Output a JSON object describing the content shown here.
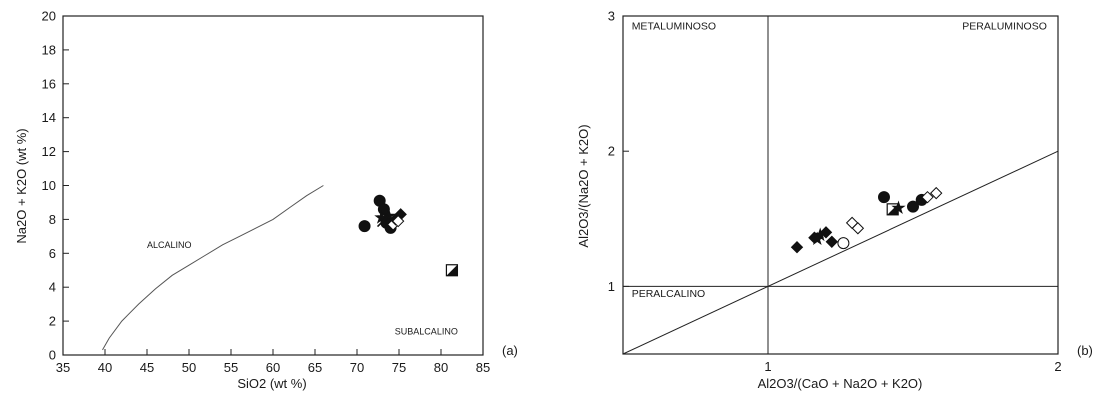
{
  "chart_data": [
    {
      "id": "a",
      "type": "scatter",
      "title": "",
      "panel_label": "(a)",
      "xlabel": "SiO2 (wt %)",
      "ylabel": "Na2O + K2O (wt %)",
      "xlim": [
        35,
        85
      ],
      "ylim": [
        0,
        20
      ],
      "xticks": [
        35,
        40,
        45,
        50,
        55,
        60,
        65,
        70,
        75,
        80,
        85
      ],
      "yticks": [
        0,
        2,
        4,
        6,
        8,
        10,
        12,
        14,
        16,
        18,
        20
      ],
      "grid": false,
      "field_labels": [
        {
          "text": "ALCALINO",
          "x": 45,
          "y": 6.3
        },
        {
          "text": "SUBALCALINO",
          "x": 74.5,
          "y": 1.2
        }
      ],
      "boundary_line": {
        "x": [
          39.7,
          40.5,
          42,
          44,
          46,
          48,
          50,
          52,
          54,
          56,
          58,
          60,
          62,
          64,
          66
        ],
        "y": [
          0.3,
          1.0,
          2.0,
          3.0,
          3.9,
          4.7,
          5.3,
          5.9,
          6.5,
          7.0,
          7.5,
          8.0,
          8.7,
          9.4,
          10.0
        ]
      },
      "points": [
        {
          "x": 70.9,
          "y": 7.6,
          "marker": "circle-filled"
        },
        {
          "x": 72.7,
          "y": 9.1,
          "marker": "circle-filled"
        },
        {
          "x": 73.2,
          "y": 8.6,
          "marker": "circle-filled"
        },
        {
          "x": 73.5,
          "y": 7.8,
          "marker": "circle-filled"
        },
        {
          "x": 74.0,
          "y": 7.5,
          "marker": "circle-filled"
        },
        {
          "x": 73.8,
          "y": 8.2,
          "marker": "star"
        },
        {
          "x": 72.9,
          "y": 8.1,
          "marker": "star"
        },
        {
          "x": 73.1,
          "y": 7.9,
          "marker": "cross"
        },
        {
          "x": 74.3,
          "y": 7.7,
          "marker": "diamond-open"
        },
        {
          "x": 74.6,
          "y": 8.0,
          "marker": "diamond-filled"
        },
        {
          "x": 75.2,
          "y": 8.3,
          "marker": "diamond-filled"
        },
        {
          "x": 74.9,
          "y": 7.9,
          "marker": "diamond-open"
        },
        {
          "x": 81.3,
          "y": 5.0,
          "marker": "square-half"
        }
      ]
    },
    {
      "id": "b",
      "type": "scatter",
      "title": "",
      "panel_label": "(b)",
      "xlabel": "Al2O3/(CaO + Na2O + K2O)",
      "ylabel": "Al2O3/(Na2O + K2O)",
      "xlim": [
        0.5,
        2
      ],
      "ylim": [
        0.5,
        3
      ],
      "xticks": [
        1,
        2
      ],
      "yticks": [
        1,
        2,
        3
      ],
      "grid": false,
      "divider_x": 1,
      "divider_y": 1,
      "field_labels": [
        {
          "text": "METALUMINOSO",
          "x": 0.53,
          "y": 2.9
        },
        {
          "text": "PERALUMINOSO",
          "x": 1.67,
          "y": 2.9
        },
        {
          "text": "PERALCALINO",
          "x": 0.53,
          "y": 0.92
        }
      ],
      "diagonal_line": {
        "x": [
          0.5,
          2.0
        ],
        "y": [
          0.5,
          2.0
        ]
      },
      "points": [
        {
          "x": 1.4,
          "y": 1.66,
          "marker": "circle-filled"
        },
        {
          "x": 1.5,
          "y": 1.59,
          "marker": "circle-filled"
        },
        {
          "x": 1.53,
          "y": 1.64,
          "marker": "circle-filled"
        },
        {
          "x": 1.43,
          "y": 1.57,
          "marker": "square-half"
        },
        {
          "x": 1.45,
          "y": 1.58,
          "marker": "star"
        },
        {
          "x": 1.55,
          "y": 1.66,
          "marker": "diamond-open"
        },
        {
          "x": 1.58,
          "y": 1.69,
          "marker": "diamond-open"
        },
        {
          "x": 1.29,
          "y": 1.47,
          "marker": "diamond-open"
        },
        {
          "x": 1.31,
          "y": 1.43,
          "marker": "diamond-open"
        },
        {
          "x": 1.16,
          "y": 1.36,
          "marker": "diamond-filled"
        },
        {
          "x": 1.2,
          "y": 1.4,
          "marker": "diamond-filled"
        },
        {
          "x": 1.18,
          "y": 1.38,
          "marker": "star"
        },
        {
          "x": 1.17,
          "y": 1.35,
          "marker": "star"
        },
        {
          "x": 1.22,
          "y": 1.33,
          "marker": "diamond-filled"
        },
        {
          "x": 1.26,
          "y": 1.32,
          "marker": "circle-open"
        },
        {
          "x": 1.1,
          "y": 1.29,
          "marker": "diamond-filled"
        }
      ]
    }
  ]
}
